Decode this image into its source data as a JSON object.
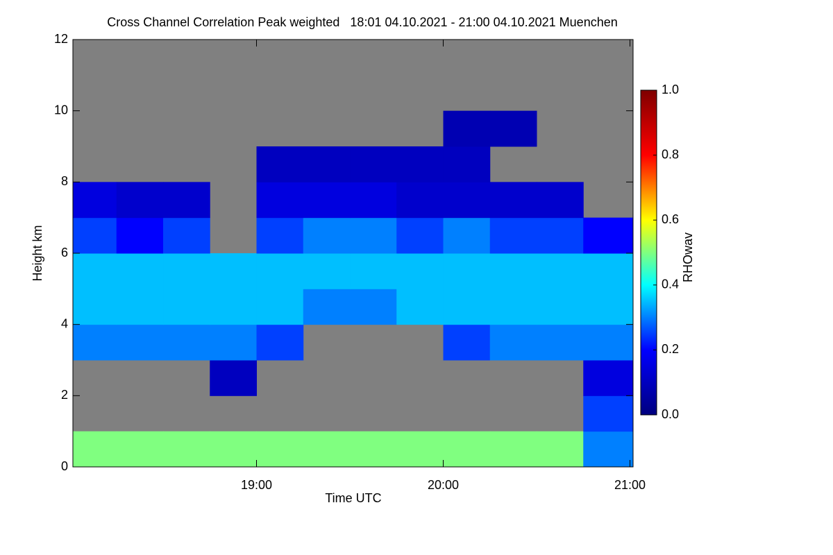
{
  "chart_data": {
    "type": "heatmap",
    "title": "Cross Channel Correlation Peak weighted   18:01 04.10.2021 - 21:00 04.10.2021 Muenchen",
    "x_label": "Time UTC",
    "y_label": "Height km",
    "colorbar_label": "RHOwav",
    "xlim": [
      18.0167,
      21.0167
    ],
    "xticks": [
      {
        "value": 19,
        "label": "19:00"
      },
      {
        "value": 20,
        "label": "20:00"
      },
      {
        "value": 21,
        "label": "21:00"
      }
    ],
    "ylim": [
      0,
      12
    ],
    "yticks": [
      0,
      2,
      4,
      6,
      8,
      10,
      12
    ],
    "zlim": [
      0,
      1
    ],
    "zticks": [
      {
        "value": 0,
        "label": "0.0"
      },
      {
        "value": 0.2,
        "label": "0.2"
      },
      {
        "value": 0.4,
        "label": "0.4"
      },
      {
        "value": 0.6,
        "label": "0.6"
      },
      {
        "value": 0.8,
        "label": "0.8"
      },
      {
        "value": 1,
        "label": "1.0"
      }
    ],
    "colormap": [
      "#00007f",
      "#0000ff",
      "#00ffff",
      "#ffff00",
      "#ff0000",
      "#7f0000"
    ],
    "missing_color": "#808080",
    "xbins": [
      18.0167,
      18.25,
      18.5,
      18.75,
      19,
      19.25,
      19.5,
      19.75,
      20,
      20.25,
      20.5,
      20.75,
      21.0167
    ],
    "ybins": [
      0,
      1,
      2,
      3,
      4,
      5,
      6,
      7,
      8,
      9,
      10,
      11,
      12
    ],
    "z": [
      [
        0.5,
        0.5,
        0.5,
        0.5,
        0.5,
        0.5,
        0.5,
        0.5,
        0.5,
        0.5,
        0.5,
        0.3
      ],
      [
        null,
        null,
        null,
        null,
        null,
        null,
        null,
        null,
        null,
        null,
        null,
        0.25
      ],
      [
        null,
        null,
        null,
        0.1,
        null,
        null,
        null,
        null,
        null,
        null,
        null,
        0.15
      ],
      [
        0.3,
        0.3,
        0.3,
        0.3,
        0.25,
        null,
        null,
        null,
        0.25,
        0.3,
        0.3,
        0.3
      ],
      [
        0.35,
        0.35,
        0.35,
        0.35,
        0.35,
        0.3,
        0.3,
        0.35,
        0.35,
        0.35,
        0.35,
        0.35
      ],
      [
        0.35,
        0.35,
        0.35,
        0.35,
        0.35,
        0.35,
        0.35,
        0.35,
        0.35,
        0.35,
        0.35,
        0.35
      ],
      [
        0.25,
        0.2,
        0.25,
        null,
        0.25,
        0.3,
        0.3,
        0.25,
        0.3,
        0.25,
        0.25,
        0.2
      ],
      [
        0.15,
        0.12,
        0.12,
        null,
        0.15,
        0.15,
        0.15,
        0.12,
        0.12,
        0.12,
        0.12,
        null
      ],
      [
        null,
        null,
        null,
        null,
        0.1,
        0.1,
        0.1,
        0.1,
        0.1,
        null,
        null,
        null
      ],
      [
        null,
        null,
        null,
        null,
        null,
        null,
        null,
        null,
        0.08,
        0.08,
        null,
        null
      ],
      [
        null,
        null,
        null,
        null,
        null,
        null,
        null,
        null,
        null,
        null,
        null,
        null
      ],
      [
        null,
        null,
        null,
        null,
        null,
        null,
        null,
        null,
        null,
        null,
        null,
        null
      ]
    ]
  }
}
